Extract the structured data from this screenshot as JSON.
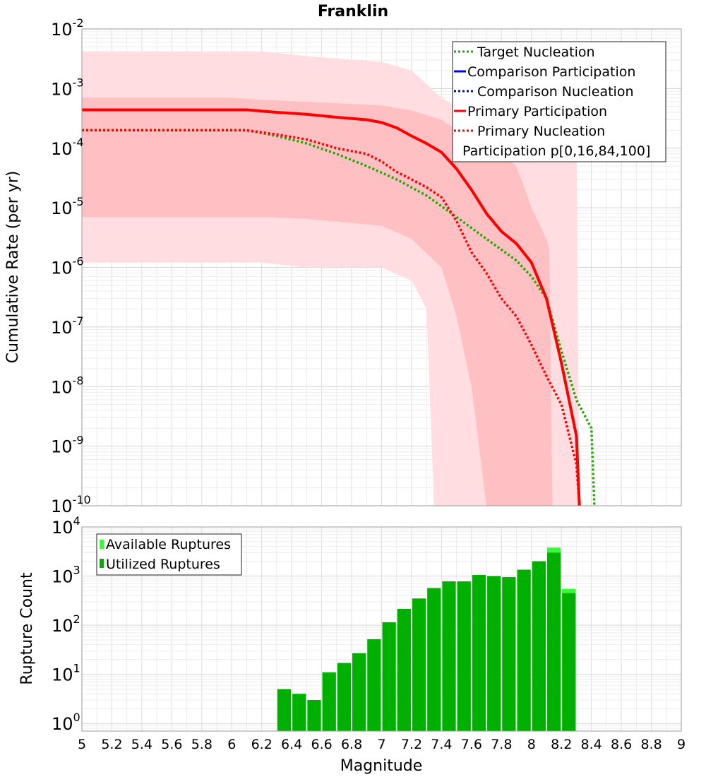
{
  "chart_data": [
    {
      "type": "line",
      "title": "Franklin",
      "xlabel": "",
      "ylabel": "Cumulative Rate (per yr)",
      "xlim": [
        5,
        9
      ],
      "yscale": "log",
      "ylim": [
        1e-10,
        0.01
      ],
      "y_tick_labels": [
        {
          "base": "10",
          "exp": "-10"
        },
        {
          "base": "10",
          "exp": "-9"
        },
        {
          "base": "10",
          "exp": "-8"
        },
        {
          "base": "10",
          "exp": "-7"
        },
        {
          "base": "10",
          "exp": "-6"
        },
        {
          "base": "10",
          "exp": "-5"
        },
        {
          "base": "10",
          "exp": "-4"
        },
        {
          "base": "10",
          "exp": "-3"
        },
        {
          "base": "10",
          "exp": "-2"
        }
      ],
      "legend_position": "top-right",
      "legend": [
        {
          "label": "Target Nucleation",
          "style": "dotted",
          "color": "#22aa00"
        },
        {
          "label": "Comparison Participation",
          "style": "solid",
          "color": "#0000ff"
        },
        {
          "label": "Comparison Nucleation",
          "style": "dotted",
          "color": "#0000ff"
        },
        {
          "label": "Primary Participation",
          "style": "solid",
          "color": "#ff0000"
        },
        {
          "label": "Primary Nucleation",
          "style": "dotted",
          "color": "#ff0000"
        },
        {
          "label": "Participation p[0,16,84,100]",
          "style": "none",
          "color": "#ffffff"
        }
      ],
      "bands": [
        {
          "name": "Participation p[0,100]",
          "color": "#ffdde0",
          "x": [
            5.0,
            6.0,
            6.2,
            6.5,
            7.0,
            7.2,
            7.3,
            7.35,
            7.4,
            7.5,
            7.6,
            7.7,
            7.8,
            7.9,
            8.0,
            8.1,
            8.2,
            8.3,
            8.32
          ],
          "upper": [
            0.0042,
            0.0042,
            0.0042,
            0.0035,
            0.0028,
            0.002,
            0.0012,
            0.0009,
            0.0007,
            0.0005,
            0.0004,
            0.0003,
            0.0003,
            0.0003,
            0.0003,
            0.0002,
            0.00015,
            0.00013,
            1e-10
          ],
          "lower": [
            1.2e-06,
            1.2e-06,
            1.2e-06,
            1e-06,
            1e-06,
            6e-07,
            2e-07,
            1e-10,
            1e-10,
            1e-10,
            1e-10,
            1e-10,
            1e-10,
            1e-10,
            1e-10,
            1e-10,
            1e-10,
            1e-10,
            1e-10
          ]
        },
        {
          "name": "Participation p[16,84]",
          "color": "#ffc0c4",
          "x": [
            5.0,
            6.0,
            6.2,
            6.5,
            7.0,
            7.2,
            7.4,
            7.5,
            7.6,
            7.7,
            7.8,
            7.9,
            8.0,
            8.1,
            8.12,
            8.14
          ],
          "upper": [
            0.0007,
            0.0007,
            0.00065,
            0.0006,
            0.00052,
            0.00043,
            0.0003,
            0.0002,
            0.00015,
            0.00011,
            8e-05,
            5e-05,
            1e-05,
            3e-06,
            2e-06,
            1e-10
          ],
          "lower": [
            7e-06,
            7e-06,
            7e-06,
            6.5e-06,
            5e-06,
            3e-06,
            1e-06,
            1.5e-07,
            1e-08,
            1e-10,
            1e-10,
            1e-10,
            1e-10,
            1e-10,
            1e-10,
            1e-10
          ]
        }
      ],
      "series": [
        {
          "name": "Target Nucleation",
          "style": "dotted",
          "color": "#22aa00",
          "x": [
            5.0,
            6.1,
            6.3,
            6.5,
            6.7,
            6.9,
            7.1,
            7.3,
            7.5,
            7.7,
            7.9,
            8.0,
            8.1,
            8.2,
            8.3,
            8.4,
            8.42
          ],
          "y": [
            0.0002,
            0.0002,
            0.00016,
            0.00012,
            8e-05,
            5e-05,
            3e-05,
            1.6e-05,
            7e-06,
            3e-06,
            1.3e-06,
            7e-07,
            3e-07,
            4e-08,
            6e-09,
            2e-09,
            1e-10
          ]
        },
        {
          "name": "Primary Participation",
          "style": "solid",
          "color": "#ff0000",
          "x": [
            5.0,
            6.1,
            6.3,
            6.5,
            6.7,
            6.9,
            7.0,
            7.1,
            7.2,
            7.3,
            7.4,
            7.5,
            7.6,
            7.7,
            7.8,
            7.9,
            8.0,
            8.1,
            8.2,
            8.3,
            8.32
          ],
          "y": [
            0.00044,
            0.00044,
            0.0004,
            0.00037,
            0.00033,
            0.0003,
            0.00027,
            0.00022,
            0.00016,
            0.00012,
            8.5e-05,
            4.5e-05,
            2e-05,
            8e-06,
            4e-06,
            2.5e-06,
            1.2e-06,
            3e-07,
            2.5e-08,
            1.5e-09,
            1e-10
          ]
        },
        {
          "name": "Primary Nucleation",
          "style": "dotted",
          "color": "#ff0000",
          "x": [
            5.0,
            6.1,
            6.3,
            6.5,
            6.7,
            6.9,
            7.0,
            7.1,
            7.2,
            7.3,
            7.4,
            7.5,
            7.6,
            7.7,
            7.8,
            7.9,
            8.0,
            8.1,
            8.2,
            8.3,
            8.32
          ],
          "y": [
            0.0002,
            0.0002,
            0.00017,
            0.00014,
            0.0001,
            8e-05,
            6e-05,
            4e-05,
            3e-05,
            2.2e-05,
            1.5e-05,
            6e-06,
            1.8e-06,
            8e-07,
            3e-07,
            1.5e-07,
            5e-08,
            1.5e-08,
            5e-09,
            5e-10,
            1e-10
          ]
        }
      ]
    },
    {
      "type": "bar",
      "title": "",
      "xlabel": "Magnitude",
      "ylabel": "Rupture Count",
      "xlim": [
        5,
        9
      ],
      "yscale": "log",
      "ylim": [
        0.7,
        10000.0
      ],
      "x_tick_labels": [
        "5",
        "5.2",
        "5.4",
        "5.6",
        "5.8",
        "6",
        "6.2",
        "6.4",
        "6.6",
        "6.8",
        "7",
        "7.2",
        "7.4",
        "7.6",
        "7.8",
        "8",
        "8.2",
        "8.4",
        "8.6",
        "8.8",
        "9"
      ],
      "y_tick_labels": [
        {
          "base": "10",
          "exp": "0"
        },
        {
          "base": "10",
          "exp": "1"
        },
        {
          "base": "10",
          "exp": "2"
        },
        {
          "base": "10",
          "exp": "3"
        },
        {
          "base": "10",
          "exp": "4"
        }
      ],
      "legend_position": "top-left",
      "legend": [
        {
          "label": "Available Ruptures",
          "color": "#33ff33"
        },
        {
          "label": "Utilized Ruptures",
          "color": "#00b000"
        }
      ],
      "bar_width": 0.1,
      "x": [
        6.35,
        6.45,
        6.55,
        6.65,
        6.75,
        6.85,
        6.95,
        7.05,
        7.15,
        7.25,
        7.35,
        7.45,
        7.55,
        7.65,
        7.75,
        7.85,
        7.95,
        8.05,
        8.15,
        8.25
      ],
      "series": [
        {
          "name": "Available Ruptures",
          "color": "#33ff33",
          "values": [
            5,
            4,
            3,
            11,
            17,
            27,
            52,
            115,
            215,
            350,
            570,
            780,
            780,
            1050,
            1000,
            950,
            1350,
            2000,
            3800,
            550
          ]
        },
        {
          "name": "Utilized Ruptures",
          "color": "#00b000",
          "values": [
            5,
            4,
            3,
            11,
            17,
            27,
            52,
            115,
            215,
            350,
            570,
            780,
            780,
            1050,
            1000,
            950,
            1350,
            2000,
            3000,
            450
          ]
        }
      ]
    }
  ]
}
